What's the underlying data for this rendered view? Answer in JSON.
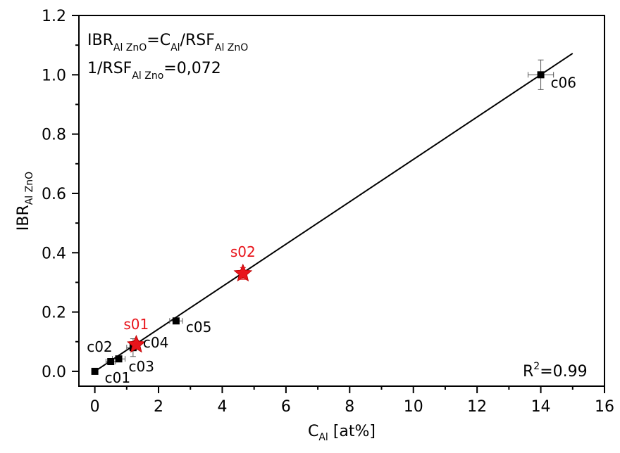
{
  "chart_data": {
    "type": "scatter",
    "xlabel": {
      "main": "C",
      "sub": "Al",
      "unit": " [at%]"
    },
    "ylabel": {
      "main": "IBR",
      "sub": "Al ZnO"
    },
    "xlim": [
      -0.5,
      16
    ],
    "ylim": [
      -0.05,
      1.2
    ],
    "x_ticks": [
      0,
      2,
      4,
      6,
      8,
      10,
      12,
      14,
      16
    ],
    "y_ticks": [
      0.0,
      0.2,
      0.4,
      0.6,
      0.8,
      1.0,
      1.2
    ],
    "x_tick_labels": [
      "0",
      "2",
      "4",
      "6",
      "8",
      "10",
      "12",
      "14",
      "16"
    ],
    "y_tick_labels": [
      "0.0",
      "0.2",
      "0.4",
      "0.6",
      "0.8",
      "1.0",
      "1.2"
    ],
    "series": [
      {
        "marker": "square",
        "color": "#000000",
        "points": [
          {
            "label": "c01",
            "x": 0.0,
            "y": 0.0,
            "xerr": 0.0,
            "yerr": 0.0
          },
          {
            "label": "c02",
            "x": 0.5,
            "y": 0.033,
            "xerr": 0.15,
            "yerr": 0.005
          },
          {
            "label": "c03",
            "x": 0.75,
            "y": 0.042,
            "xerr": 0.2,
            "yerr": 0.01
          },
          {
            "label": "c04",
            "x": 1.2,
            "y": 0.08,
            "xerr": 0.2,
            "yerr": 0.03
          },
          {
            "label": "c05",
            "x": 2.55,
            "y": 0.17,
            "xerr": 0.2,
            "yerr": 0.005
          },
          {
            "label": "c06",
            "x": 14.0,
            "y": 1.0,
            "xerr": 0.4,
            "yerr": 0.05
          }
        ]
      },
      {
        "marker": "star",
        "color": "#e8141b",
        "points": [
          {
            "label": "s01",
            "x": 1.3,
            "y": 0.09,
            "xerr": 0.1,
            "yerr": 0.015
          },
          {
            "label": "s02",
            "x": 4.65,
            "y": 0.33,
            "xerr": 0.1,
            "yerr": 0.02
          }
        ]
      }
    ],
    "fit_line": {
      "x": [
        0,
        15
      ],
      "y": [
        0,
        1.072
      ]
    },
    "annotations": {
      "eq1": {
        "lhs": "IBR",
        "lhs_sub": "Al ZnO",
        "eq": "=C",
        "c_sub": "Al",
        "div": "/RSF",
        "rsf_sub": "Al ZnO"
      },
      "eq2": {
        "pre": "1/RSF",
        "sub": "Al Zno",
        "post": "=0,072"
      },
      "r2": {
        "base": "R",
        "sup": "2",
        "val": "=0.99"
      }
    }
  }
}
